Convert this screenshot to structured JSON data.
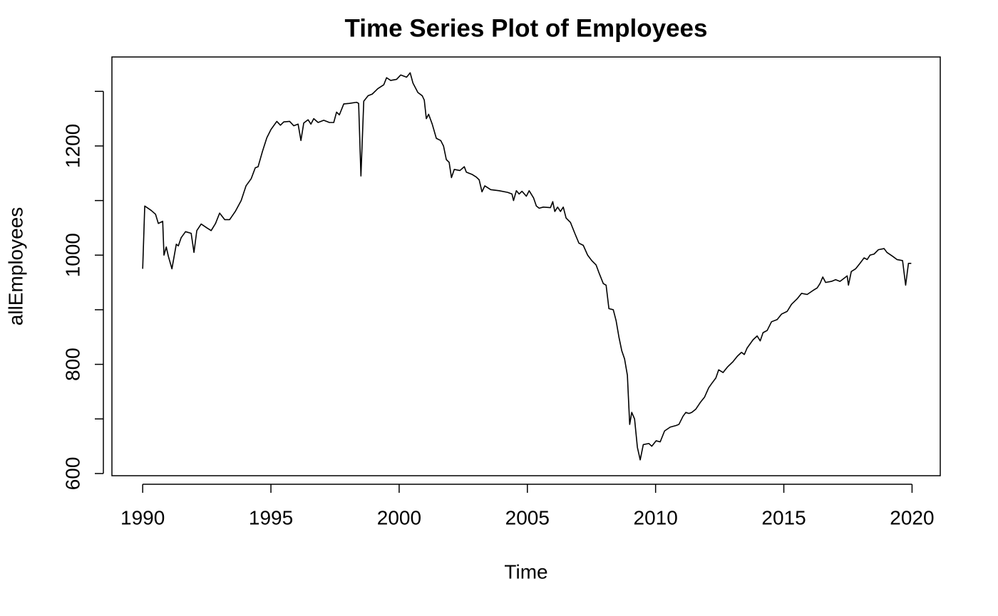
{
  "chart_data": {
    "type": "line",
    "title": "Time Series Plot of Employees",
    "x_label": "Time",
    "y_label": "allEmployees",
    "color": "#000000",
    "x": [
      1990.0,
      1990.08,
      1990.33,
      1990.5,
      1990.61,
      1990.78,
      1990.83,
      1990.92,
      1991.0,
      1991.14,
      1991.31,
      1991.39,
      1991.5,
      1991.67,
      1991.89,
      1992.0,
      1992.11,
      1992.28,
      1992.5,
      1992.67,
      1992.84,
      1993.0,
      1993.2,
      1993.39,
      1993.61,
      1993.84,
      1994.03,
      1994.23,
      1994.39,
      1994.5,
      1994.67,
      1994.84,
      1995.0,
      1995.23,
      1995.37,
      1995.5,
      1995.73,
      1995.89,
      1996.06,
      1996.17,
      1996.28,
      1996.45,
      1996.56,
      1996.67,
      1996.84,
      1997.06,
      1997.28,
      1997.45,
      1997.56,
      1997.67,
      1997.84,
      1998.06,
      1998.34,
      1998.42,
      1998.51,
      1998.62,
      1998.79,
      1998.95,
      1999.17,
      1999.4,
      1999.51,
      1999.67,
      1999.9,
      2000.06,
      2000.29,
      2000.43,
      2000.54,
      2000.73,
      2000.9,
      2000.98,
      2001.06,
      2001.15,
      2001.29,
      2001.45,
      2001.62,
      2001.73,
      2001.84,
      2001.95,
      2002.04,
      2002.15,
      2002.37,
      2002.54,
      2002.62,
      2002.84,
      2003.01,
      2003.12,
      2003.23,
      2003.34,
      2003.57,
      2003.9,
      2004.23,
      2004.4,
      2004.46,
      2004.57,
      2004.68,
      2004.79,
      2004.96,
      2005.07,
      2005.24,
      2005.35,
      2005.46,
      2005.62,
      2005.9,
      2005.99,
      2006.07,
      2006.18,
      2006.29,
      2006.4,
      2006.51,
      2006.68,
      2006.85,
      2007.01,
      2007.18,
      2007.35,
      2007.51,
      2007.68,
      2007.79,
      2007.96,
      2008.07,
      2008.18,
      2008.35,
      2008.46,
      2008.57,
      2008.68,
      2008.79,
      2008.9,
      2008.99,
      2009.07,
      2009.18,
      2009.29,
      2009.4,
      2009.52,
      2009.74,
      2009.85,
      2010.02,
      2010.18,
      2010.35,
      2010.57,
      2010.8,
      2010.91,
      2011.07,
      2011.18,
      2011.3,
      2011.41,
      2011.57,
      2011.74,
      2011.91,
      2012.07,
      2012.19,
      2012.35,
      2012.46,
      2012.63,
      2012.8,
      2013.02,
      2013.19,
      2013.35,
      2013.46,
      2013.57,
      2013.8,
      2013.96,
      2014.08,
      2014.19,
      2014.35,
      2014.52,
      2014.74,
      2014.91,
      2015.13,
      2015.3,
      2015.52,
      2015.69,
      2015.91,
      2016.13,
      2016.3,
      2016.41,
      2016.52,
      2016.63,
      2016.86,
      2017.02,
      2017.19,
      2017.36,
      2017.47,
      2017.52,
      2017.63,
      2017.8,
      2017.97,
      2018.13,
      2018.25,
      2018.36,
      2018.52,
      2018.69,
      2018.91,
      2019.02,
      2019.24,
      2019.41,
      2019.63,
      2019.75,
      2019.86,
      2019.97
    ],
    "values": [
      975,
      1090,
      1082,
      1075,
      1058,
      1062,
      1000,
      1015,
      998,
      975,
      1020,
      1017,
      1032,
      1043,
      1040,
      1005,
      1045,
      1057,
      1050,
      1045,
      1058,
      1077,
      1065,
      1065,
      1080,
      1100,
      1127,
      1140,
      1160,
      1162,
      1190,
      1215,
      1230,
      1245,
      1238,
      1244,
      1245,
      1237,
      1240,
      1210,
      1242,
      1248,
      1240,
      1250,
      1243,
      1247,
      1243,
      1243,
      1262,
      1257,
      1277,
      1278,
      1280,
      1278,
      1145,
      1282,
      1292,
      1295,
      1305,
      1312,
      1325,
      1320,
      1322,
      1330,
      1326,
      1334,
      1315,
      1298,
      1292,
      1284,
      1250,
      1258,
      1240,
      1214,
      1210,
      1200,
      1175,
      1170,
      1142,
      1157,
      1155,
      1162,
      1152,
      1148,
      1143,
      1138,
      1116,
      1127,
      1120,
      1118,
      1115,
      1112,
      1100,
      1118,
      1112,
      1117,
      1108,
      1118,
      1105,
      1090,
      1086,
      1088,
      1087,
      1098,
      1080,
      1088,
      1080,
      1088,
      1068,
      1060,
      1040,
      1022,
      1018,
      1000,
      990,
      982,
      968,
      948,
      945,
      902,
      900,
      880,
      850,
      825,
      810,
      780,
      690,
      712,
      700,
      648,
      625,
      653,
      655,
      650,
      660,
      658,
      678,
      685,
      688,
      690,
      705,
      712,
      710,
      712,
      718,
      730,
      740,
      757,
      765,
      775,
      790,
      785,
      795,
      805,
      815,
      822,
      818,
      830,
      845,
      852,
      843,
      858,
      862,
      878,
      882,
      892,
      897,
      910,
      920,
      930,
      928,
      935,
      940,
      948,
      960,
      950,
      952,
      955,
      952,
      958,
      962,
      945,
      970,
      975,
      985,
      995,
      992,
      1000,
      1002,
      1010,
      1012,
      1005,
      998,
      992,
      990,
      945,
      985,
      985
    ],
    "xlim": [
      1988.8,
      2021.1
    ],
    "ylim": [
      596,
      1363
    ],
    "xticks": [
      1990,
      1995,
      2000,
      2005,
      2010,
      2015,
      2020
    ],
    "yticks": [
      600,
      {
        "value": 700,
        "label": null
      },
      800,
      {
        "value": 900,
        "label": null
      },
      1000,
      {
        "value": 1100,
        "label": null
      },
      1200,
      {
        "value": 1300,
        "label": null
      }
    ]
  }
}
